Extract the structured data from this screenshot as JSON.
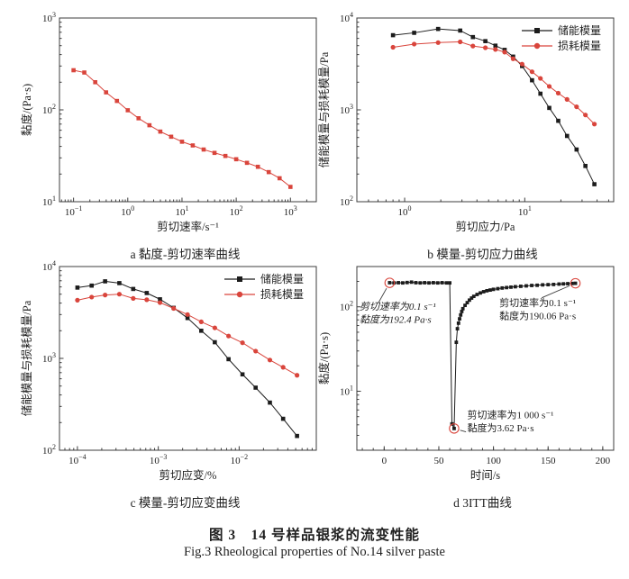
{
  "figure": {
    "caption_zh": "图 3　14 号样品银浆的流变性能",
    "caption_en": "Fig.3 Rheological properties of No.14 silver paste"
  },
  "colors": {
    "red": "#d9453c",
    "black": "#1c1c1c",
    "axis": "#3c3c3c",
    "text": "#1f1f1f"
  },
  "chart_data": [
    {
      "id": "a",
      "type": "line",
      "caption": "a 黏度-剪切速率曲线",
      "xlabel": "剪切速率/s⁻¹",
      "ylabel": "黏度/(Pa·s)",
      "xscale": "log",
      "yscale": "log",
      "xlim": [
        0.055,
        3000
      ],
      "ylim": [
        10,
        1000
      ],
      "legend": false,
      "series": [
        {
          "name": "黏度",
          "color": "red",
          "marker": "square",
          "msize": 4.6,
          "x": [
            0.1,
            0.158,
            0.251,
            0.398,
            0.631,
            1,
            1.58,
            2.51,
            3.98,
            6.31,
            10,
            15.8,
            25.1,
            39.8,
            63.1,
            100,
            158,
            251,
            398,
            631,
            1000
          ],
          "y": [
            270,
            255,
            200,
            155,
            125,
            99,
            81,
            68,
            58,
            51,
            45,
            41,
            37,
            34,
            31.5,
            29,
            26.5,
            24,
            21,
            18,
            14.5
          ]
        }
      ]
    },
    {
      "id": "b",
      "type": "line",
      "caption": "b 模量-剪切应力曲线",
      "xlabel": "剪切应力/Pa",
      "ylabel": "储能模量与损耗模量/Pa",
      "xscale": "log",
      "yscale": "log",
      "xlim": [
        0.4,
        55
      ],
      "ylim": [
        100,
        10000
      ],
      "legend": true,
      "series": [
        {
          "name": "储能模量",
          "color": "black",
          "marker": "square",
          "msize": 4.6,
          "x": [
            0.8,
            1.2,
            1.9,
            2.9,
            3.7,
            4.7,
            5.7,
            6.8,
            8.0,
            9.5,
            11.5,
            13.5,
            16,
            19,
            22.5,
            27,
            32,
            38
          ],
          "y": [
            6500,
            6900,
            7600,
            7300,
            6200,
            5600,
            5000,
            4500,
            3800,
            3000,
            2100,
            1500,
            1050,
            760,
            520,
            370,
            245,
            155
          ]
        },
        {
          "name": "损耗模量",
          "color": "red",
          "marker": "circle",
          "msize": 4.8,
          "x": [
            0.8,
            1.2,
            1.9,
            2.9,
            3.7,
            4.7,
            5.7,
            6.8,
            8.0,
            9.5,
            11.5,
            13.5,
            16,
            19,
            22.5,
            27,
            32,
            38
          ],
          "y": [
            4800,
            5200,
            5400,
            5500,
            4950,
            4750,
            4550,
            4250,
            3600,
            3150,
            2600,
            2200,
            1800,
            1520,
            1300,
            1080,
            880,
            700
          ]
        }
      ]
    },
    {
      "id": "c",
      "type": "line",
      "caption": "c 模量-剪切应变曲线",
      "xlabel": "剪切应变/%",
      "ylabel": "储能模量与损耗模量/Pa",
      "xscale": "log",
      "yscale": "log",
      "xlim": [
        6e-05,
        0.09
      ],
      "ylim": [
        100,
        10000
      ],
      "legend": true,
      "series": [
        {
          "name": "储能模量",
          "color": "black",
          "marker": "square",
          "msize": 4.6,
          "x": [
            0.0001,
            0.00015,
            0.00022,
            0.00033,
            0.00049,
            0.00072,
            0.00105,
            0.00155,
            0.0023,
            0.0034,
            0.005,
            0.0074,
            0.011,
            0.016,
            0.024,
            0.035,
            0.052
          ],
          "y": [
            5900,
            6200,
            6900,
            6600,
            5700,
            5150,
            4400,
            3550,
            2750,
            2000,
            1500,
            980,
            670,
            480,
            330,
            220,
            143
          ]
        },
        {
          "name": "损耗模量",
          "color": "red",
          "marker": "circle",
          "msize": 4.8,
          "x": [
            0.0001,
            0.00015,
            0.00022,
            0.00033,
            0.00049,
            0.00072,
            0.00105,
            0.00155,
            0.0023,
            0.0034,
            0.005,
            0.0074,
            0.011,
            0.016,
            0.024,
            0.035,
            0.052
          ],
          "y": [
            4300,
            4650,
            4900,
            5000,
            4500,
            4350,
            4050,
            3500,
            3000,
            2500,
            2150,
            1750,
            1480,
            1200,
            960,
            800,
            655
          ]
        }
      ]
    },
    {
      "id": "d",
      "type": "line",
      "caption": "d 3ITT曲线",
      "xlabel": "时间/s",
      "ylabel": "黏度/(Pa·s)",
      "xscale": "linear",
      "yscale": "log",
      "xlim": [
        -25,
        210
      ],
      "ylim": [
        2,
        300
      ],
      "xticks": [
        0,
        50,
        100,
        150,
        200
      ],
      "xminor": 10,
      "legend": false,
      "series": [
        {
          "name": "黏度",
          "color": "black",
          "marker": "square",
          "msize": 3.8,
          "x": [
            5,
            9,
            13,
            17,
            21,
            25,
            29,
            33,
            37,
            41,
            45,
            49,
            53,
            57,
            60,
            62,
            64,
            66,
            67,
            68,
            69,
            70,
            71,
            72,
            74,
            76,
            78,
            80,
            82,
            85,
            88,
            91,
            94,
            97,
            100,
            104,
            108,
            112,
            116,
            120,
            125,
            130,
            135,
            140,
            145,
            150,
            155,
            160,
            164,
            168,
            172,
            175
          ],
          "y": [
            193,
            192,
            193,
            192,
            194,
            196,
            193,
            192,
            193,
            192,
            193,
            192,
            193,
            192,
            192,
            4.1,
            3.62,
            38,
            55,
            64,
            72,
            80,
            88,
            95,
            104,
            112,
            120,
            127,
            133,
            140,
            146,
            151,
            155,
            158,
            161,
            164,
            167,
            169,
            171,
            173,
            175,
            177,
            179,
            180,
            182,
            183,
            184,
            186,
            187,
            188,
            189,
            190
          ]
        }
      ],
      "annotations": [
        {
          "lines": [
            "剪切速率为0.1 s⁻¹",
            "黏度为192.4 Pa·s"
          ],
          "tx": 0.01,
          "ty": 0.235,
          "lx": 0.085,
          "ly": 0.195,
          "ax": 5,
          "ay": 192.4,
          "italic": true
        },
        {
          "lines": [
            "剪切速率为0.1 s⁻¹",
            "黏度为190.06 Pa·s"
          ],
          "tx": 0.555,
          "ty": 0.215,
          "lx": 0.72,
          "ly": 0.17,
          "ax": 175,
          "ay": 190.06,
          "italic": false
        },
        {
          "lines": [
            "剪切速率为1 000 s⁻¹",
            "黏度为3.62 Pa·s"
          ],
          "tx": 0.43,
          "ty": 0.825,
          "lx": 0.425,
          "ly": 0.9,
          "ax": 64,
          "ay": 3.62,
          "italic": false
        }
      ]
    }
  ]
}
